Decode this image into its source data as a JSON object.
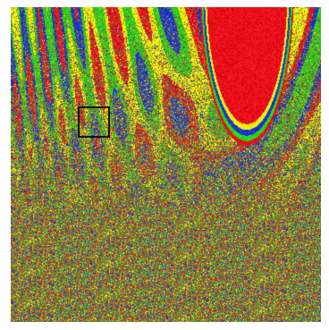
{
  "image": {
    "kind": "fractal basin-of-attraction render",
    "dominant_colors": [
      "#e8101a",
      "#1a35c8",
      "#2fd21a",
      "#f2ee12",
      "#7f7a3a"
    ],
    "has_selection_box": true
  }
}
